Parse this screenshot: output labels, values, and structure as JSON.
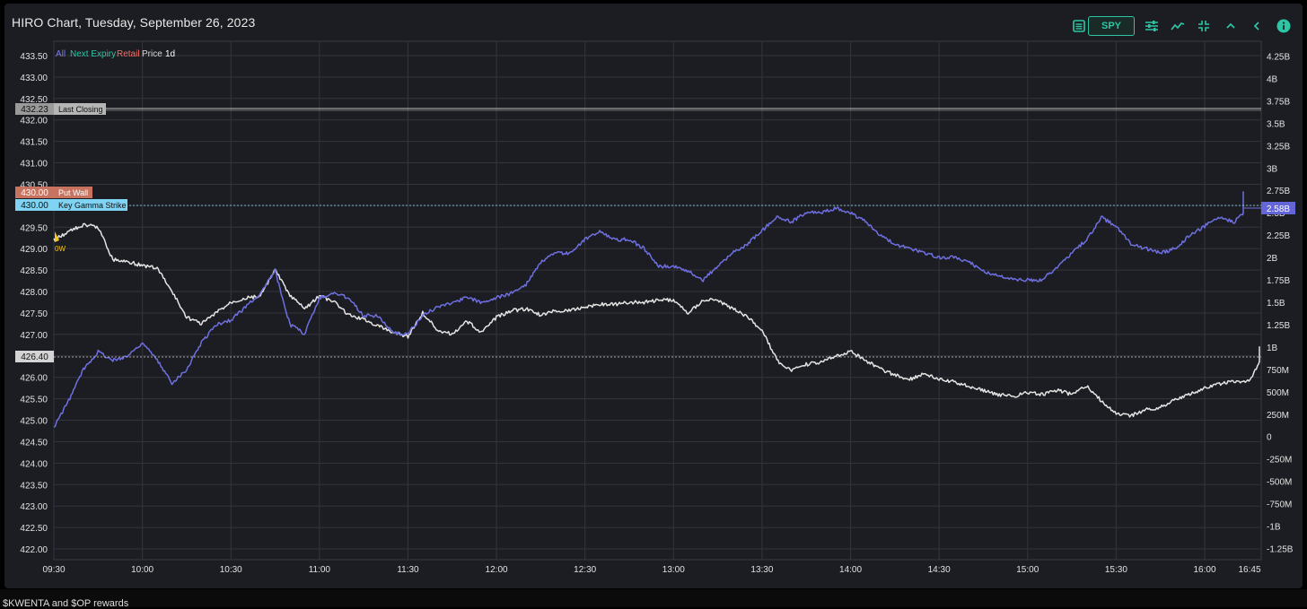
{
  "header": {
    "title": "HIRO Chart, Tuesday, September 26, 2023",
    "ticker": "SPY",
    "icons": [
      "list-icon",
      "sliders-icon",
      "line-chart-icon",
      "collapse-icon",
      "chevron-up-icon",
      "chevron-left-icon",
      "info-icon"
    ]
  },
  "legend": {
    "items": [
      {
        "label": "All",
        "color": "#7b7cf0"
      },
      {
        "label": "Next Expiry",
        "color": "#2dc6a4"
      },
      {
        "label": "Retail",
        "color": "#f07066"
      },
      {
        "label": "Price",
        "color": "#d8d8d8"
      },
      {
        "label": "1d",
        "color": "#ffffff"
      }
    ]
  },
  "markers": {
    "last_closing": {
      "value": "432.23",
      "label": "Last Closing",
      "color": "#9a9a9a"
    },
    "put_wall": {
      "value": "430.00",
      "label": "Put Wall",
      "color": "#d87566"
    },
    "key_gamma": {
      "value": "430.00",
      "label": "Key Gamma Strike",
      "color": "#7fd3f3"
    },
    "current_price": {
      "value": "426.40"
    },
    "current_hiro": {
      "value": "2.58B"
    },
    "event": {
      "label": "0W"
    }
  },
  "bottom_text": "$KWENTA and $OP rewards",
  "chart_data": {
    "type": "line",
    "title": "HIRO Chart, Tuesday, September 26, 2023",
    "x_ticks": [
      "09:30",
      "10:00",
      "10:30",
      "11:00",
      "11:30",
      "12:00",
      "12:30",
      "13:00",
      "13:30",
      "14:00",
      "14:30",
      "15:00",
      "15:30",
      "16:00",
      "16:45"
    ],
    "y_left_ticks": [
      "433.50",
      "433.00",
      "432.50",
      "432.00",
      "431.50",
      "431.00",
      "430.50",
      "430.00",
      "429.50",
      "429.00",
      "428.50",
      "428.00",
      "427.50",
      "427.00",
      "426.50",
      "426.00",
      "425.50",
      "425.00",
      "424.50",
      "424.00",
      "423.50",
      "423.00",
      "422.50",
      "422.00"
    ],
    "y_right_ticks": [
      "4.25B",
      "4B",
      "3.75B",
      "3.5B",
      "3.25B",
      "3B",
      "2.75B",
      "2.5B",
      "2.25B",
      "2B",
      "1.75B",
      "1.5B",
      "1.25B",
      "1B",
      "750M",
      "500M",
      "250M",
      "0",
      "-250M",
      "-500M",
      "-750M",
      "-1B",
      "-1.25B"
    ],
    "y_left_range": [
      421.75,
      433.75
    ],
    "y_right_range": [
      -1.375,
      4.375
    ],
    "y_right_unit": "B",
    "series": [
      {
        "name": "Price",
        "axis": "left",
        "color": "#e4e4e4",
        "x": [
          "09:30",
          "09:35",
          "09:40",
          "09:45",
          "09:50",
          "09:55",
          "10:00",
          "10:05",
          "10:10",
          "10:15",
          "10:20",
          "10:25",
          "10:30",
          "10:35",
          "10:40",
          "10:45",
          "10:50",
          "10:55",
          "11:00",
          "11:05",
          "11:10",
          "11:15",
          "11:20",
          "11:25",
          "11:30",
          "11:35",
          "11:40",
          "11:45",
          "11:50",
          "11:55",
          "12:00",
          "12:05",
          "12:10",
          "12:15",
          "12:20",
          "12:25",
          "12:30",
          "12:35",
          "12:40",
          "12:45",
          "12:50",
          "12:55",
          "13:00",
          "13:05",
          "13:10",
          "13:15",
          "13:20",
          "13:25",
          "13:30",
          "13:35",
          "13:40",
          "13:45",
          "13:50",
          "13:55",
          "14:00",
          "14:05",
          "14:10",
          "14:15",
          "14:20",
          "14:25",
          "14:30",
          "14:35",
          "14:40",
          "14:45",
          "14:50",
          "14:55",
          "15:00",
          "15:05",
          "15:10",
          "15:15",
          "15:20",
          "15:25",
          "15:30",
          "15:35",
          "15:40",
          "15:45",
          "15:50",
          "15:55",
          "16:00",
          "16:05",
          "16:10",
          "16:15",
          "16:20",
          "16:25",
          "16:30",
          "16:35",
          "16:40",
          "16:45"
        ],
        "values": [
          429.2,
          429.4,
          429.55,
          429.5,
          428.75,
          428.7,
          428.6,
          428.55,
          428.0,
          427.4,
          427.25,
          427.5,
          427.75,
          427.85,
          427.9,
          428.5,
          427.9,
          427.6,
          427.9,
          427.75,
          427.45,
          427.35,
          427.2,
          427.05,
          426.95,
          427.5,
          427.1,
          427.0,
          427.3,
          427.05,
          427.4,
          427.55,
          427.6,
          427.45,
          427.55,
          427.55,
          427.65,
          427.7,
          427.7,
          427.75,
          427.75,
          427.8,
          427.8,
          427.5,
          427.8,
          427.8,
          427.6,
          427.4,
          427.1,
          426.4,
          426.15,
          426.3,
          426.35,
          426.5,
          426.6,
          426.4,
          426.2,
          426.05,
          425.95,
          426.1,
          425.95,
          425.9,
          425.8,
          425.7,
          425.6,
          425.55,
          425.65,
          425.6,
          425.7,
          425.6,
          425.8,
          425.45,
          425.15,
          425.1,
          425.25,
          425.3,
          425.5,
          425.6,
          425.75,
          425.85,
          425.9,
          425.9,
          426.5,
          426.7,
          426.6,
          426.45,
          426.4,
          426.4
        ]
      },
      {
        "name": "All",
        "axis": "right",
        "color": "#6e6fe0",
        "x": [
          "09:30",
          "09:35",
          "09:40",
          "09:45",
          "09:50",
          "09:55",
          "10:00",
          "10:05",
          "10:10",
          "10:15",
          "10:20",
          "10:25",
          "10:30",
          "10:35",
          "10:40",
          "10:45",
          "10:50",
          "10:55",
          "11:00",
          "11:05",
          "11:10",
          "11:15",
          "11:20",
          "11:25",
          "11:30",
          "11:35",
          "11:40",
          "11:45",
          "11:50",
          "11:55",
          "12:00",
          "12:05",
          "12:10",
          "12:15",
          "12:20",
          "12:25",
          "12:30",
          "12:35",
          "12:40",
          "12:45",
          "12:50",
          "12:55",
          "13:00",
          "13:05",
          "13:10",
          "13:15",
          "13:20",
          "13:25",
          "13:30",
          "13:35",
          "13:40",
          "13:45",
          "13:50",
          "13:55",
          "14:00",
          "14:05",
          "14:10",
          "14:15",
          "14:20",
          "14:25",
          "14:30",
          "14:35",
          "14:40",
          "14:45",
          "14:50",
          "14:55",
          "15:00",
          "15:05",
          "15:10",
          "15:15",
          "15:20",
          "15:25",
          "15:30",
          "15:35",
          "15:40",
          "15:45",
          "15:50",
          "15:55",
          "16:00",
          "16:05",
          "16:10",
          "16:15",
          "16:20",
          "16:25",
          "16:30",
          "16:35",
          "16:40",
          "16:45"
        ],
        "values": [
          0.1,
          0.4,
          0.75,
          0.95,
          0.85,
          0.9,
          1.05,
          0.85,
          0.6,
          0.75,
          1.05,
          1.25,
          1.3,
          1.45,
          1.6,
          1.85,
          1.25,
          1.15,
          1.55,
          1.6,
          1.55,
          1.35,
          1.35,
          1.15,
          1.15,
          1.35,
          1.45,
          1.5,
          1.55,
          1.5,
          1.55,
          1.6,
          1.7,
          1.95,
          2.05,
          2.05,
          2.2,
          2.3,
          2.2,
          2.2,
          2.1,
          1.9,
          1.9,
          1.85,
          1.75,
          1.9,
          2.05,
          2.15,
          2.3,
          2.45,
          2.4,
          2.5,
          2.5,
          2.55,
          2.5,
          2.4,
          2.25,
          2.15,
          2.1,
          2.05,
          2.0,
          2.0,
          1.95,
          1.85,
          1.8,
          1.75,
          1.75,
          1.75,
          1.9,
          2.05,
          2.2,
          2.45,
          2.35,
          2.15,
          2.1,
          2.05,
          2.1,
          2.25,
          2.35,
          2.45,
          2.4,
          2.55,
          2.6,
          2.65,
          2.68,
          2.72,
          2.58,
          2.58
        ]
      }
    ],
    "grid": true,
    "legend_position": "top-left"
  }
}
